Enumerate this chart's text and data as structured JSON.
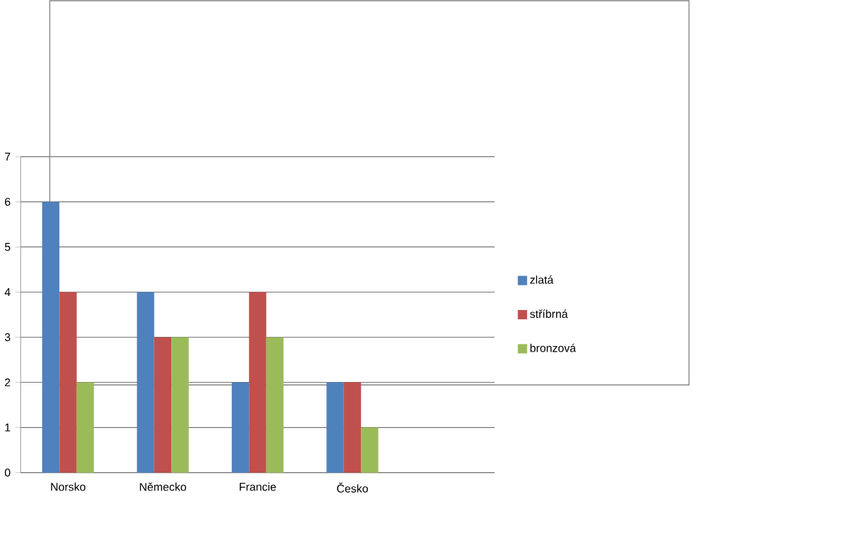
{
  "chart_data": {
    "type": "bar",
    "categories": [
      "Norsko",
      "Německo",
      "Francie",
      "Česko",
      null
    ],
    "series": [
      {
        "name": "zlatá",
        "color": "#4f81bd",
        "values": [
          6,
          4,
          2,
          2,
          null
        ]
      },
      {
        "name": "stříbrná",
        "color": "#c0504d",
        "values": [
          4,
          3,
          4,
          2,
          null
        ]
      },
      {
        "name": "bronzová",
        "color": "#9bbb59",
        "values": [
          2,
          3,
          3,
          1,
          null
        ]
      }
    ],
    "ylim": [
      0,
      7
    ],
    "yticks": [
      0,
      1,
      2,
      3,
      4,
      5,
      6,
      7
    ],
    "grid": "y",
    "legend": "right"
  }
}
